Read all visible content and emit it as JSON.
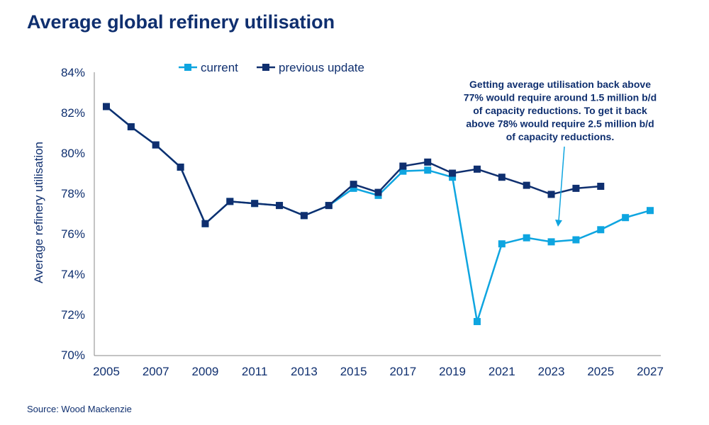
{
  "chart_data": {
    "type": "line",
    "title": "Average global refinery utilisation",
    "ylabel": "Average refinery utilisation",
    "xlabel": "",
    "ylim": [
      70,
      84
    ],
    "xlim": [
      2005,
      2027
    ],
    "y_ticks": [
      "70%",
      "72%",
      "74%",
      "76%",
      "78%",
      "80%",
      "82%",
      "84%"
    ],
    "x_ticks": [
      "2005",
      "2007",
      "2009",
      "2011",
      "2013",
      "2015",
      "2017",
      "2019",
      "2021",
      "2023",
      "2025",
      "2027"
    ],
    "grid": false,
    "legend_position": "top",
    "series": [
      {
        "name": "current",
        "color": "#0ea5e0",
        "x": [
          2005,
          2006,
          2007,
          2008,
          2009,
          2010,
          2011,
          2012,
          2013,
          2014,
          2015,
          2016,
          2017,
          2018,
          2019,
          2020,
          2021,
          2022,
          2023,
          2024,
          2025,
          2026,
          2027
        ],
        "values": [
          82.3,
          81.3,
          80.4,
          79.3,
          76.5,
          77.6,
          77.5,
          77.4,
          76.9,
          77.4,
          78.25,
          77.9,
          79.1,
          79.15,
          78.8,
          71.65,
          75.5,
          75.8,
          75.6,
          75.7,
          76.2,
          76.8,
          77.15
        ]
      },
      {
        "name": "previous update",
        "color": "#0f2f6f",
        "x": [
          2005,
          2006,
          2007,
          2008,
          2009,
          2010,
          2011,
          2012,
          2013,
          2014,
          2015,
          2016,
          2017,
          2018,
          2019,
          2020,
          2021,
          2022,
          2023,
          2024,
          2025
        ],
        "values": [
          82.3,
          81.3,
          80.4,
          79.3,
          76.5,
          77.6,
          77.5,
          77.4,
          76.9,
          77.4,
          78.45,
          78.05,
          79.35,
          79.55,
          79.0,
          79.2,
          78.8,
          78.4,
          77.95,
          78.25,
          78.35
        ]
      }
    ],
    "annotation": [
      "Getting average utilisation back above",
      "77% would require around 1.5 million b/d",
      "of capacity reductions. To get it back",
      "above 78% would require 2.5 million b/d",
      "of capacity reductions."
    ]
  },
  "source": "Source: Wood Mackenzie"
}
